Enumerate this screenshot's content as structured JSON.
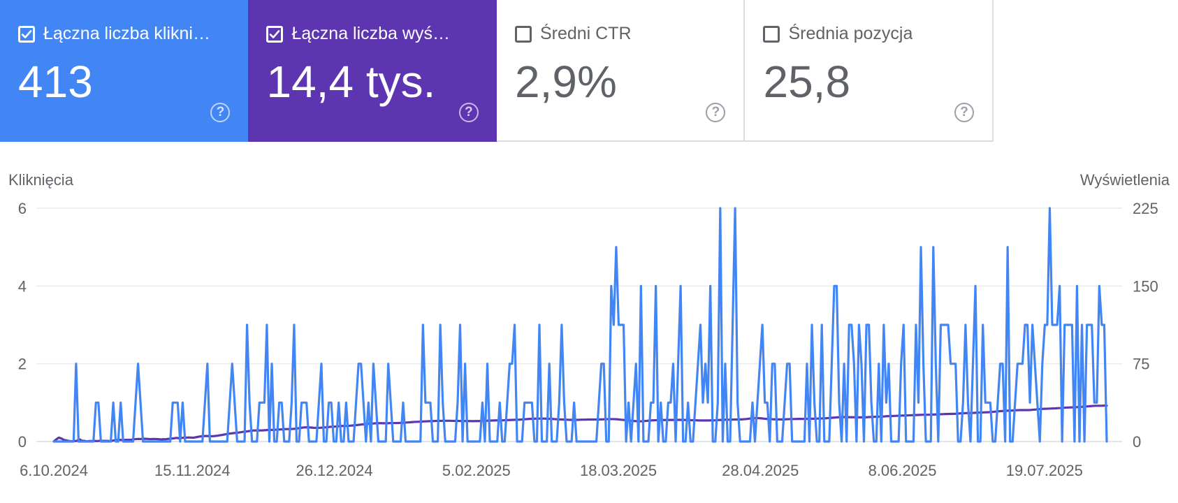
{
  "metrics": [
    {
      "label": "Łączna liczba kliknięć",
      "value": "413",
      "checked": true,
      "color": "#4285f4"
    },
    {
      "label": "Łączna liczba wyświetleń",
      "value": "14,4 tys.",
      "checked": true,
      "color": "#5e35b1"
    },
    {
      "label": "Średni CTR",
      "value": "2,9%",
      "checked": false
    },
    {
      "label": "Średnia pozycja",
      "value": "25,8",
      "checked": false
    }
  ],
  "help_glyph": "?",
  "chart_data": {
    "type": "line",
    "x_ticks": [
      "6.10.2024",
      "15.11.2024",
      "26.12.2024",
      "5.02.2025",
      "18.03.2025",
      "28.04.2025",
      "8.06.2025",
      "19.07.2025"
    ],
    "x_range": [
      "2024-10-06",
      "2025-08-06"
    ],
    "y_left": {
      "label": "Kliknięcia",
      "ticks": [
        0,
        2,
        4,
        6
      ],
      "range": [
        0,
        6
      ]
    },
    "y_right": {
      "label": "Wyświetlenia",
      "ticks": [
        0,
        75,
        150,
        225
      ],
      "range": [
        0,
        225
      ]
    },
    "grid": true,
    "series": [
      {
        "name": "Łączna liczba kliknięć",
        "axis": "left",
        "color": "#4285f4",
        "values": [
          0,
          0,
          0,
          0,
          0,
          0,
          0,
          0,
          0,
          2,
          0,
          0,
          0,
          0,
          0,
          0,
          0,
          1,
          1,
          0,
          0,
          0,
          0,
          0,
          1,
          0,
          0,
          1,
          0,
          0,
          0,
          0,
          0,
          1,
          2,
          1,
          0,
          0,
          0,
          0,
          0,
          0,
          0,
          0,
          0,
          0,
          0,
          0,
          1,
          1,
          1,
          0,
          1,
          0,
          0,
          0,
          0,
          0,
          0,
          0,
          0,
          1,
          2,
          0,
          0,
          0,
          0,
          0,
          0,
          0,
          0,
          1,
          2,
          1,
          0,
          0,
          0,
          0,
          3,
          1,
          0,
          0,
          0,
          1,
          1,
          1,
          3,
          0,
          2,
          0,
          0,
          1,
          1,
          0,
          0,
          0,
          1,
          3,
          0,
          0,
          1,
          1,
          1,
          0,
          0,
          0,
          0,
          1,
          2,
          0,
          0,
          1,
          1,
          0,
          0,
          1,
          0,
          0,
          1,
          0,
          0,
          0,
          1,
          2,
          2,
          1,
          0,
          1,
          0,
          2,
          1,
          0,
          0,
          0,
          0,
          2,
          1,
          0,
          0,
          0,
          0,
          1,
          0,
          0,
          0,
          0,
          0,
          0,
          0,
          3,
          1,
          1,
          1,
          0,
          0,
          0,
          3,
          1,
          0,
          0,
          0,
          0,
          0,
          1,
          3,
          0,
          2,
          0,
          0,
          0,
          0,
          0,
          0,
          1,
          0,
          2,
          0,
          0,
          0,
          0,
          1,
          0,
          0,
          1,
          2,
          2,
          3,
          0,
          0,
          0,
          1,
          1,
          1,
          1,
          0,
          0,
          3,
          0,
          0,
          0,
          2,
          0,
          0,
          0,
          1,
          3,
          1,
          0,
          0,
          0,
          1,
          0,
          0,
          0,
          0,
          0,
          0,
          0,
          0,
          0,
          1,
          2,
          2,
          0,
          0,
          4,
          3,
          5,
          3,
          3,
          3,
          0,
          1,
          0,
          1,
          2,
          0,
          4,
          0,
          0,
          0,
          1,
          1,
          4,
          0,
          1,
          0,
          0,
          1,
          1,
          2,
          0,
          2,
          4,
          0,
          0,
          1,
          0,
          0,
          1,
          2,
          3,
          1,
          2,
          1,
          4,
          0,
          0,
          1,
          6,
          0,
          2,
          0,
          0,
          3,
          6,
          1,
          0,
          0,
          0,
          0,
          0,
          1,
          0,
          1,
          2,
          3,
          1,
          1,
          0,
          2,
          2,
          0,
          0,
          0,
          1,
          2,
          2,
          0,
          0,
          0,
          0,
          0,
          0,
          2,
          0,
          3,
          1,
          0,
          0,
          3,
          0,
          0,
          0,
          2,
          4,
          4,
          1,
          0,
          2,
          0,
          3,
          3,
          2,
          0,
          3,
          2,
          0,
          3,
          3,
          1,
          0,
          0,
          2,
          0,
          3,
          1,
          2,
          0,
          0,
          0,
          0,
          2,
          3,
          0,
          0,
          0,
          0,
          3,
          1,
          5,
          2,
          0,
          0,
          0,
          5,
          2,
          0,
          3,
          3,
          3,
          3,
          2,
          2,
          2,
          0,
          0,
          1,
          3,
          1,
          0,
          2,
          4,
          0,
          0,
          3,
          1,
          1,
          1,
          0,
          0,
          1,
          2,
          2,
          0,
          5,
          0,
          0,
          1,
          2,
          2,
          2,
          3,
          3,
          1,
          3,
          2,
          1,
          0,
          2,
          3,
          3,
          6,
          3,
          3,
          3,
          4,
          0,
          3,
          3,
          3,
          3,
          0,
          4,
          0,
          3,
          0,
          3,
          3,
          3,
          1,
          1,
          4,
          3,
          3,
          0
        ]
      },
      {
        "name": "Łączna liczba wyświetleń",
        "axis": "right",
        "color": "#5e35b1",
        "values": [
          0.1,
          2.1,
          3.8,
          2.9,
          1.5,
          1.1,
          0.5,
          0.3,
          0.4,
          0.6,
          2.2,
          0.8,
          0.6,
          0.1,
          0.5,
          0.4,
          0.6,
          0.4,
          0.7,
          0.6,
          0.6,
          0.6,
          0.4,
          0.8,
          1.3,
          1.5,
          1.6,
          1.3,
          1.6,
          1.6,
          1.6,
          2.0,
          2.3,
          2.5,
          2.4,
          2.7,
          2.6,
          2.5,
          2.3,
          2.5,
          2.4,
          2.3,
          2.0,
          2.2,
          2.3,
          2.6,
          2.8,
          3.1,
          3.5,
          3.2,
          3.5,
          3.7,
          3.8,
          3.9,
          3.7,
          3.8,
          4.3,
          4.8,
          5.1,
          5.3,
          5.3,
          5.2,
          5.1,
          5.3,
          5.6,
          6.0,
          6.4,
          6.9,
          7.4,
          7.7,
          8.0,
          8.3,
          8.6,
          8.9,
          9.3,
          9.6,
          9.9,
          10.3,
          10.6,
          10.7,
          10.7,
          10.7,
          10.8,
          11.0,
          11.2,
          11.2,
          11.3,
          11.4,
          11.6,
          11.7,
          11.9,
          12.0,
          12.0,
          12.1,
          12.2,
          12.5,
          12.9,
          13.3,
          13.6,
          13.7,
          13.6,
          13.4,
          13.2,
          13.1,
          13.2,
          13.4,
          13.6,
          13.8,
          14.1,
          14.3,
          14.4,
          14.6,
          14.9,
          15.0,
          15.0,
          15.1,
          15.3,
          15.5,
          15.7,
          16.0,
          16.3,
          16.6,
          16.9,
          17.1,
          17.3,
          17.4,
          17.6,
          17.7,
          17.7,
          17.6,
          17.6,
          17.7,
          17.8,
          17.8,
          17.8,
          17.9,
          18.0,
          18.1,
          18.3,
          18.5,
          18.7,
          18.9,
          19.0,
          19.1,
          19.3,
          19.4,
          19.5,
          19.6,
          19.7,
          19.8,
          19.9,
          19.9,
          20.0,
          20.0,
          20.0,
          20.0,
          19.9,
          19.9,
          19.9,
          19.8,
          19.8,
          19.8,
          19.7,
          19.7,
          19.6,
          19.7,
          19.7,
          19.8,
          19.9,
          20.0,
          20.1,
          20.2,
          20.3,
          20.4,
          20.4,
          20.4,
          20.5,
          20.6,
          20.7,
          20.8,
          20.9,
          21.0,
          21.0,
          21.2,
          21.4,
          21.6,
          21.8,
          21.9,
          22.0,
          22.1,
          22.1,
          22.1,
          22.1,
          22.0,
          21.9,
          21.8,
          21.6,
          21.4,
          21.3,
          21.2,
          21.1,
          21.0,
          20.9,
          20.9,
          20.9,
          20.9,
          21.0,
          21.1,
          21.1,
          21.2,
          21.2,
          21.2,
          21.2,
          21.2,
          21.3,
          21.4,
          21.5,
          21.6,
          21.6,
          21.6,
          21.5,
          21.3,
          21.0,
          20.8,
          20.6,
          20.3,
          20.0,
          19.8,
          19.6,
          19.5,
          19.5,
          19.7,
          19.9,
          20.2,
          20.4,
          20.5,
          20.6,
          20.6,
          20.7,
          20.7,
          20.8,
          20.8,
          20.8,
          20.8,
          20.9,
          20.9,
          20.8,
          20.8,
          20.7,
          20.6,
          20.5,
          20.5,
          20.4,
          20.3,
          20.3,
          20.3,
          20.3,
          20.4,
          20.4,
          20.5,
          20.7,
          20.8,
          20.9,
          21.0,
          21.0,
          21.1,
          21.2,
          21.2,
          21.3,
          21.3,
          21.5,
          21.7,
          22.0,
          22.3,
          22.5,
          22.6,
          22.5,
          22.3,
          22.0,
          21.8,
          21.6,
          21.5,
          21.4,
          21.3,
          21.3,
          21.3,
          21.4,
          21.5,
          21.6,
          21.7,
          21.7,
          21.8,
          21.8,
          21.8,
          21.9,
          21.9,
          22.0,
          22.0,
          22.0,
          22.1,
          22.2,
          22.3,
          22.4,
          22.6,
          22.8,
          23.0,
          23.2,
          23.4,
          23.5,
          23.6,
          23.6,
          23.5,
          23.4,
          23.4,
          23.3,
          23.3,
          23.3,
          23.3,
          23.4,
          23.6,
          23.7,
          23.8,
          23.9,
          24.0,
          24.1,
          24.2,
          24.4,
          24.5,
          24.6,
          24.7,
          24.8,
          24.9,
          25.0,
          25.1,
          25.2,
          25.3,
          25.4,
          25.5,
          25.6,
          25.7,
          25.8,
          25.8,
          25.8,
          25.9,
          26.0,
          26.1,
          26.2,
          26.3,
          26.4,
          26.5,
          26.6,
          26.6,
          26.7,
          26.8,
          27.0,
          27.2,
          27.3,
          27.4,
          27.5,
          27.5,
          27.6,
          27.8,
          27.9,
          28.0,
          28.1,
          28.2,
          28.3,
          28.5,
          28.7,
          29.0,
          29.2,
          29.4,
          29.6,
          29.7,
          29.8,
          29.9,
          30.1,
          30.2,
          30.3,
          30.3,
          30.3,
          30.3,
          30.4,
          30.6,
          30.8,
          31.1,
          31.3,
          31.5,
          31.6,
          31.7,
          31.8,
          31.9,
          32.0,
          32.2,
          32.3,
          32.5,
          32.7,
          32.8,
          32.9,
          32.9,
          33.1,
          33.3,
          33.4,
          33.6,
          33.8,
          34.0,
          34.2,
          34.4,
          34.5,
          34.5,
          34.5,
          34.6,
          34.6
        ]
      }
    ]
  }
}
